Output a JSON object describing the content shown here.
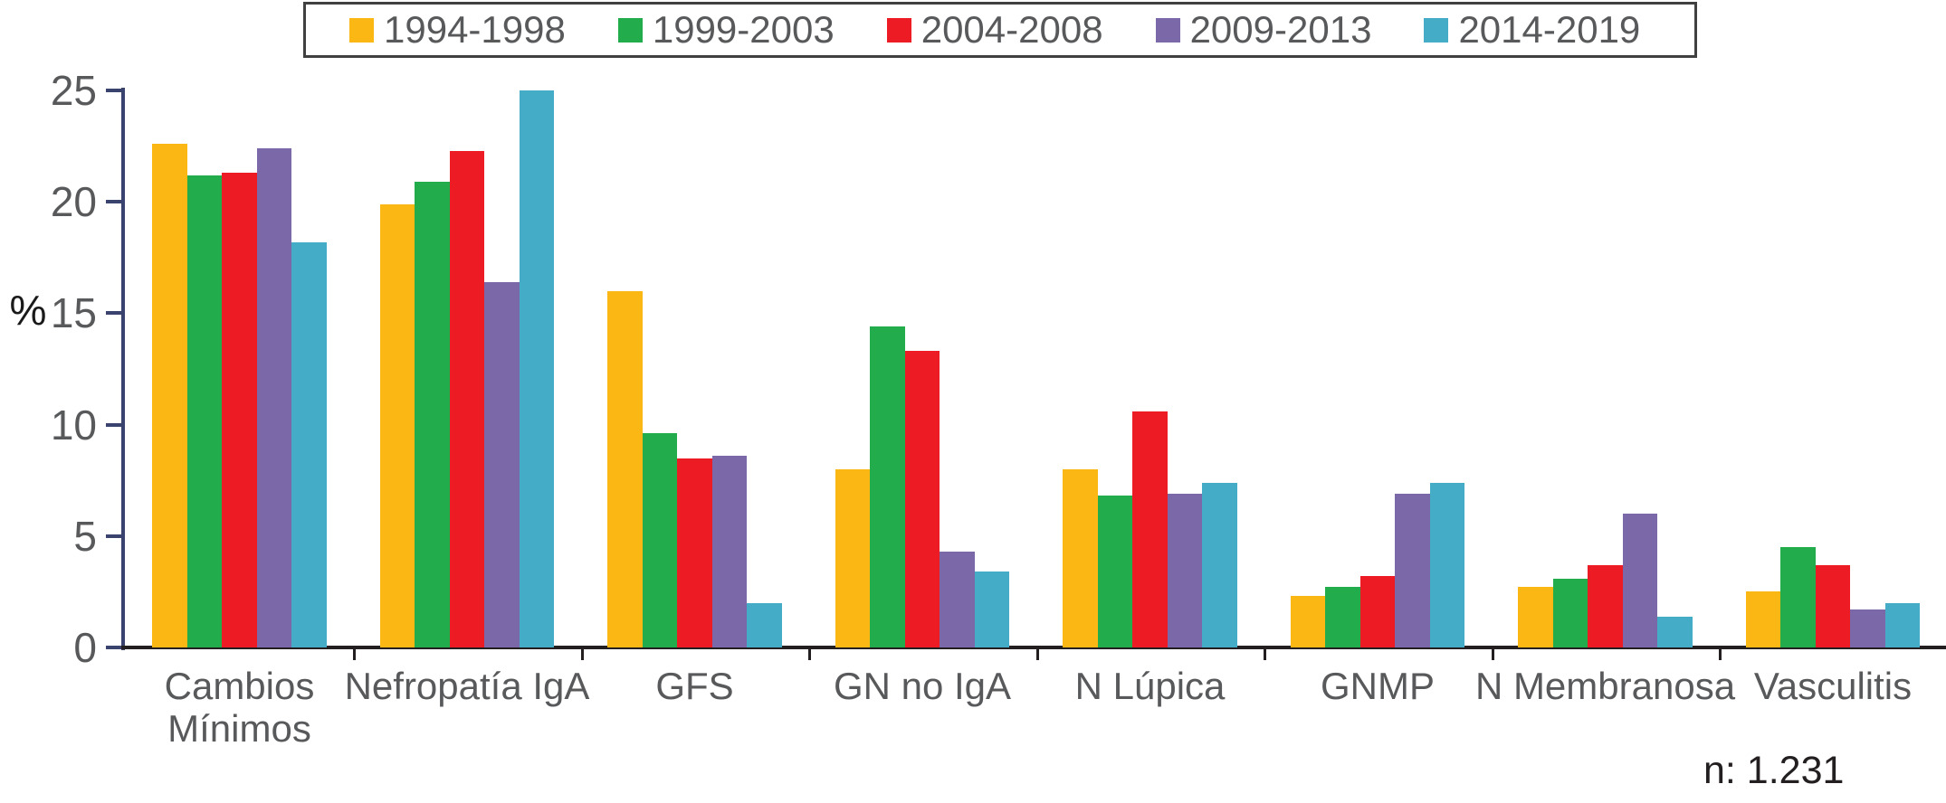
{
  "legend": {
    "items": [
      {
        "label": "1994-1998",
        "color": "#FBB713"
      },
      {
        "label": "1999-2003",
        "color": "#22AC4C"
      },
      {
        "label": "2004-2008",
        "color": "#ED1C24"
      },
      {
        "label": "2009-2013",
        "color": "#7A68A8"
      },
      {
        "label": "2014-2019",
        "color": "#44ACC7"
      }
    ]
  },
  "chart_data": {
    "type": "bar",
    "categories": [
      "Cambios Mínimos",
      "Nefropatía IgA",
      "GFS",
      "GN no IgA",
      "N Lúpica",
      "GNMP",
      "N Membranosa",
      "Vasculitis"
    ],
    "series": [
      {
        "name": "1994-1998",
        "color": "#FBB713",
        "values": [
          22.6,
          19.9,
          16.0,
          8.0,
          8.0,
          2.3,
          2.7,
          2.5
        ]
      },
      {
        "name": "1999-2003",
        "color": "#22AC4C",
        "values": [
          21.2,
          20.9,
          9.6,
          14.4,
          6.8,
          2.7,
          3.1,
          4.5
        ]
      },
      {
        "name": "2004-2008",
        "color": "#ED1C24",
        "values": [
          21.3,
          22.3,
          8.5,
          13.3,
          10.6,
          3.2,
          3.7,
          3.7
        ]
      },
      {
        "name": "2009-2013",
        "color": "#7A68A8",
        "values": [
          22.4,
          16.4,
          8.6,
          4.3,
          6.9,
          6.9,
          6.0,
          1.7
        ]
      },
      {
        "name": "2014-2019",
        "color": "#44ACC7",
        "values": [
          18.2,
          25.0,
          2.0,
          3.4,
          7.4,
          7.4,
          1.4,
          2.0
        ]
      }
    ],
    "title": "",
    "xlabel": "",
    "ylabel": "%",
    "ylim": [
      0,
      25
    ],
    "yticks": [
      0,
      5,
      10,
      15,
      20,
      25
    ],
    "grid": false,
    "legend_position": "top",
    "annotation": "n: 1.231"
  },
  "colors": {
    "y_axis": "#39436E",
    "x_axis": "#231F20",
    "tick_label": "#58595B",
    "category_label": "#58595B",
    "legend_text": "#58595B",
    "legend_border": "#404040",
    "annotation_text": "#231F20"
  }
}
